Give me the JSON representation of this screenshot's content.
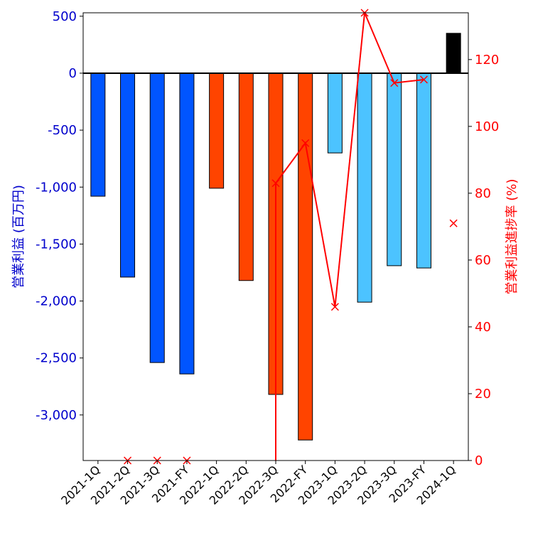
{
  "chart_data": {
    "type": "bar",
    "categories": [
      "2021-1Q",
      "2021-2Q",
      "2021-3Q",
      "2021-FY",
      "2022-1Q",
      "2022-2Q",
      "2022-3Q",
      "2022-FY",
      "2023-1Q",
      "2023-2Q",
      "2023-3Q",
      "2023-FY",
      "2024-1Q"
    ],
    "series": [
      {
        "type": "bar",
        "axis": "left",
        "values": [
          -1080,
          -1790,
          -2540,
          -2640,
          -1010,
          -1820,
          -2820,
          -3220,
          -700,
          -2010,
          -1690,
          -1710,
          350
        ],
        "colors": [
          "#0055ff",
          "#0055ff",
          "#0055ff",
          "#0055ff",
          "#ff4400",
          "#ff4400",
          "#ff4400",
          "#ff4400",
          "#4cc3ff",
          "#4cc3ff",
          "#4cc3ff",
          "#4cc3ff",
          "#000000"
        ]
      },
      {
        "type": "line",
        "axis": "right",
        "marker": "x",
        "color": "#ff0000",
        "values": [
          null,
          0,
          0,
          0,
          null,
          null,
          83,
          95,
          46,
          134,
          113,
          114,
          71
        ],
        "line_segments": [
          [
            6,
            11
          ]
        ],
        "drop_to_axis_index": 6
      }
    ],
    "ylabel_left": "営業利益 (百万円)",
    "ylabel_right": "営業利益進捗率 (%)",
    "xlabel": "",
    "title": "",
    "ylim_left": [
      -3400,
      530
    ],
    "ylim_right": [
      0,
      134
    ],
    "yticks_left": [
      500,
      0,
      -500,
      -1000,
      -1500,
      -2000,
      -2500,
      -3000
    ],
    "yticks_left_labels": [
      "500",
      "0",
      "-500",
      "-1,000",
      "-1,500",
      "-2,000",
      "-2,500",
      "-3,000"
    ],
    "yticks_right": [
      120,
      100,
      80,
      60,
      40,
      20,
      0
    ],
    "yticks_right_labels": [
      "120",
      "100",
      "80",
      "60",
      "40",
      "20",
      "0"
    ],
    "zero_line": true,
    "grid": false,
    "colors": {
      "left_axis": "#0000cc",
      "right_axis": "#ff0000",
      "bar_2021": "#0055ff",
      "bar_2022": "#ff4400",
      "bar_2023": "#4cc3ff",
      "bar_2024": "#000000"
    }
  }
}
